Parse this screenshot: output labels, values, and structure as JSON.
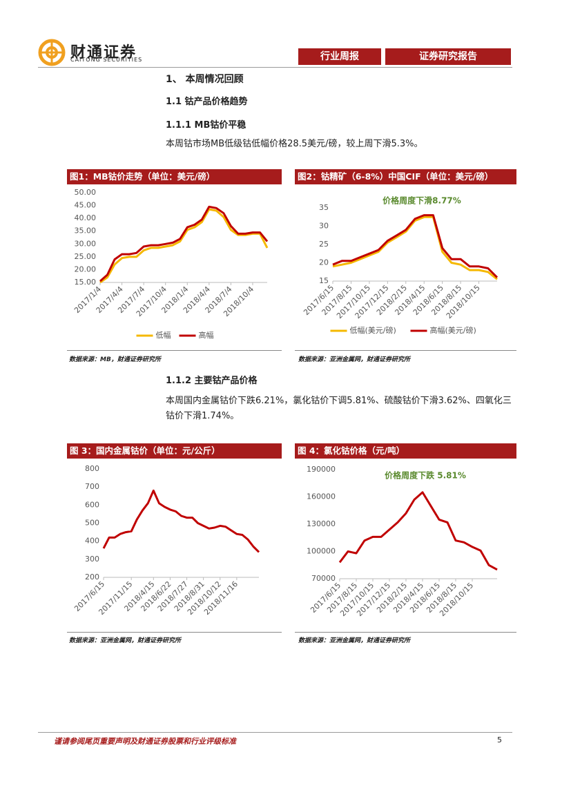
{
  "header": {
    "logo_cn": "财通证券",
    "logo_en": "CAITONG SECURITIES",
    "tabs": [
      "行业周报",
      "证券研究报告"
    ]
  },
  "sections": [
    {
      "heading": "1、 本周情况回顾"
    },
    {
      "heading": "1.1  钴产品价格趋势"
    },
    {
      "heading": "1.1.1  MB钴价平稳",
      "paragraph": "本周钴市场MB低级钴低幅价格28.5美元/磅，较上周下滑5.3%。"
    },
    {
      "heading": "1.1.2  主要钴产品价格",
      "paragraph": "本周国内金属钴价下跌6.21%，氯化钴价下调5.81%、硫酸钴价下滑3.62%、四氧化三钴价下滑1.74%。"
    }
  ],
  "chart_data": [
    {
      "type": "line",
      "title": "图1：MB钴价走势（单位：美元/磅）",
      "source": "数据来源：MB，财通证券研究所",
      "categories": [
        "2017/1/4",
        null,
        null,
        "2017/4/4",
        null,
        null,
        "2017/7/4",
        null,
        null,
        "2017/10/4",
        null,
        null,
        "2018/1/4",
        null,
        null,
        "2018/4/4",
        null,
        null,
        "2018/7/4",
        null,
        null,
        "2018/10/4",
        null,
        null
      ],
      "series": [
        {
          "name": "低幅",
          "color": "#f5b800",
          "values": [
            15,
            17,
            22,
            24.5,
            25,
            25,
            27.5,
            28.5,
            28.5,
            29,
            29.5,
            31,
            35.5,
            36.5,
            38.5,
            43.5,
            43,
            40.5,
            35.5,
            33.5,
            33.5,
            34,
            34,
            28.5
          ]
        },
        {
          "name": "高幅",
          "color": "#c00000",
          "values": [
            15.5,
            18,
            24,
            26,
            26,
            26.5,
            29,
            29.5,
            29.5,
            30,
            30.5,
            32,
            36.5,
            37.5,
            39.5,
            44.5,
            44,
            42,
            37,
            34,
            34,
            34.5,
            34.5,
            31
          ]
        }
      ],
      "ylim": [
        15,
        50
      ],
      "yticks": [
        {
          "value": 15,
          "label": "15.00"
        },
        {
          "value": 20,
          "label": "20.00"
        },
        {
          "value": 25,
          "label": "25.00"
        },
        {
          "value": 30,
          "label": "30.00"
        },
        {
          "value": 35,
          "label": "35.00"
        },
        {
          "value": 40,
          "label": "40.00"
        },
        {
          "value": 45,
          "label": "45.00"
        },
        {
          "value": 50,
          "label": "50.00"
        }
      ],
      "legend": "bottom"
    },
    {
      "type": "line",
      "title": "图2：钴精矿（6-8%）中国CIF（单位：美元/磅）",
      "source": "数据来源：亚洲金属网，财通证券研究所",
      "annotation": "价格周度下滑8.77%",
      "categories": [
        "2017/6/15",
        null,
        "2017/8/15",
        null,
        "2017/10/15",
        null,
        "2017/12/15",
        null,
        "2018/2/15",
        null,
        "2018/4/15",
        null,
        "2018/6/15",
        null,
        "2018/8/15",
        null,
        "2018/10/15",
        null,
        null
      ],
      "series": [
        {
          "name": "低幅(美元/磅)",
          "color": "#f5b800",
          "values": [
            19,
            19.5,
            20,
            21,
            22,
            23,
            25.5,
            27,
            28.5,
            31.5,
            32.5,
            32.5,
            23,
            20,
            19.5,
            18,
            18,
            17.5,
            15.5
          ]
        },
        {
          "name": "高幅(美元/磅)",
          "color": "#c00000",
          "values": [
            19.5,
            20.5,
            20.5,
            21.5,
            22.5,
            23.5,
            26,
            27.5,
            29,
            32,
            33,
            33,
            24,
            21,
            21,
            19,
            19,
            18.5,
            16
          ]
        }
      ],
      "ylim": [
        15,
        35
      ],
      "yticks": [
        15,
        20,
        25,
        30,
        35
      ],
      "legend": "bottom"
    },
    {
      "type": "line",
      "title": "图 3：国内金属钴价（单位：元/公斤）",
      "source": "数据来源：亚洲金属网，财通证券研究所",
      "categories": [
        "2017/6/15",
        null,
        null,
        null,
        null,
        "2017/11/15",
        null,
        null,
        null,
        "2018/4/15",
        null,
        null,
        "2018/6/22",
        null,
        null,
        "2018/7/27",
        null,
        null,
        "2018/8/31",
        null,
        null,
        "2018/10/12",
        null,
        null,
        "2018/11/16",
        null,
        null,
        null,
        null
      ],
      "values": [
        360,
        420,
        420,
        440,
        450,
        455,
        520,
        570,
        610,
        680,
        610,
        590,
        575,
        565,
        540,
        530,
        530,
        500,
        485,
        470,
        475,
        485,
        480,
        460,
        440,
        435,
        410,
        370,
        340
      ],
      "color": "#c00000",
      "ylim": [
        200,
        800
      ],
      "yticks": [
        200,
        300,
        400,
        500,
        600,
        700,
        800
      ]
    },
    {
      "type": "line",
      "title": "图 4：氯化钴价格（元/吨）",
      "source": "数据来源：亚洲金属网，财通证券研究所",
      "annotation": "价格周度下跌 5.81%",
      "categories": [
        "2017/6/15",
        null,
        "2017/8/15",
        null,
        "2017/10/15",
        null,
        "2017/12/15",
        null,
        "2018/2/15",
        null,
        "2018/4/15",
        null,
        "2018/6/15",
        null,
        "2018/8/15",
        null,
        "2018/10/15",
        null,
        null,
        null
      ],
      "values": [
        88000,
        100000,
        98000,
        112000,
        116000,
        116000,
        124000,
        132000,
        142000,
        157000,
        165000,
        150000,
        135000,
        132000,
        112000,
        110000,
        105000,
        101000,
        85000,
        80000
      ],
      "color": "#c00000",
      "ylim": [
        70000,
        190000
      ],
      "yticks": [
        70000,
        100000,
        130000,
        160000,
        190000
      ]
    }
  ],
  "footer": {
    "disclaimer": "谨请参阅尾页重要声明及财通证券股票和行业评级标准",
    "page": 5
  }
}
